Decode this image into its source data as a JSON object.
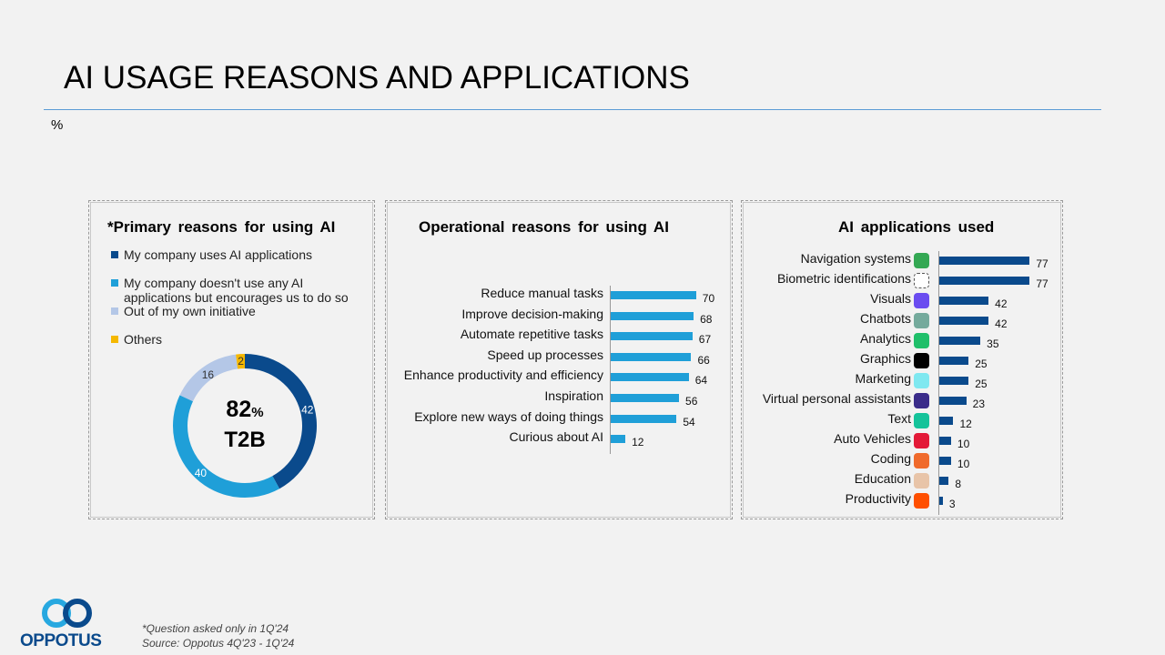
{
  "title": "AI USAGE REASONS AND APPLICATIONS",
  "unit": "%",
  "footnote": [
    "*Question asked only in 1Q'24",
    "Source: Oppotus 4Q'23 - 1Q'24"
  ],
  "logo": {
    "text": "OPPOTUS"
  },
  "chart_data": [
    {
      "type": "pie",
      "title": "*Primary reasons for using AI",
      "legend_position": "top",
      "categories": [
        "My company uses AI applications",
        "My company doesn't use any AI applications but encourages us to do so",
        "Out of my own initiative",
        "Others"
      ],
      "values": [
        42,
        40,
        16,
        2
      ],
      "colors": [
        "#0a4a8c",
        "#1f9fd8",
        "#b4c7e7",
        "#f5b800"
      ],
      "center_label": {
        "value": "82",
        "unit": "%",
        "caption": "T2B"
      }
    },
    {
      "type": "bar",
      "orientation": "horizontal",
      "title": "Operational reasons for using AI",
      "categories": [
        "Reduce manual tasks",
        "Improve decision-making",
        "Automate repetitive tasks",
        "Speed up processes",
        "Enhance productivity and efficiency",
        "Inspiration",
        "Explore new ways of doing things",
        "Curious about AI"
      ],
      "values": [
        70,
        68,
        67,
        66,
        64,
        56,
        54,
        12
      ],
      "color": "#1f9fd8"
    },
    {
      "type": "bar",
      "orientation": "horizontal",
      "title": "AI applications used",
      "categories": [
        "Navigation systems",
        "Biometric identifications",
        "Visuals",
        "Chatbots",
        "Analytics",
        "Graphics",
        "Marketing",
        "Virtual personal assistants",
        "Text",
        "Auto Vehicles",
        "Coding",
        "Education",
        "Productivity"
      ],
      "values": [
        77,
        77,
        42,
        42,
        35,
        25,
        25,
        23,
        12,
        10,
        10,
        8,
        3
      ],
      "color": "#0a4a8c",
      "icons": [
        "google-maps-icon",
        "face-id-icon",
        "canva-icon",
        "chatgpt-icon",
        "analytics-app-icon",
        "graphics-app-icon",
        "marketing-video-icon",
        "siri-icon",
        "grammarly-icon",
        "tesla-icon",
        "coding-app-icon",
        "education-avatar-icon",
        "zapier-icon"
      ],
      "icon_colors": [
        "#34a853",
        "#ffffff",
        "#6a4cf0",
        "#74aa9c",
        "#1fbf6a",
        "#000000",
        "#7fe8f0",
        "#3a2c8a",
        "#15c39a",
        "#e31937",
        "#f06a2c",
        "#e8c4a8",
        "#ff4f00"
      ]
    }
  ]
}
